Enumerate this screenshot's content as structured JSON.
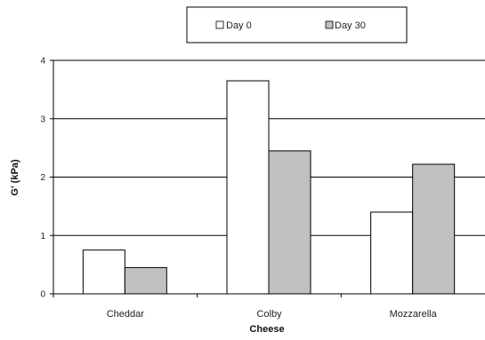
{
  "chart_data": {
    "type": "bar",
    "categories": [
      "Cheddar",
      "Colby",
      "Mozzarella"
    ],
    "series": [
      {
        "name": "Day 0",
        "values": [
          0.75,
          3.65,
          1.4
        ],
        "color": "#ffffff"
      },
      {
        "name": "Day 30",
        "values": [
          0.45,
          2.45,
          2.22
        ],
        "color": "#c0c0c0"
      }
    ],
    "xlabel": "Cheese",
    "ylabel": "G' (kPa)",
    "ylim": [
      0,
      4
    ],
    "yticks": [
      "0",
      "1",
      "2",
      "3",
      "4"
    ],
    "grid": true,
    "legend_position": "top"
  }
}
